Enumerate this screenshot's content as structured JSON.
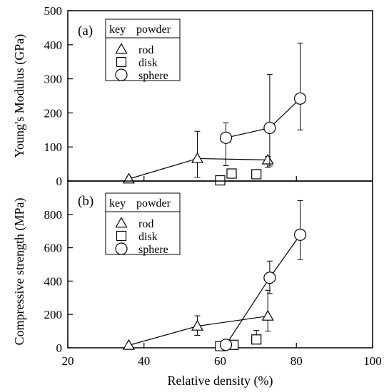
{
  "chart_data": [
    {
      "type": "scatter",
      "panel_label": "(a)",
      "ylabel": "Young's Modulus (GPa)",
      "xlabel": "",
      "xlim": [
        20,
        100
      ],
      "ylim": [
        0,
        500
      ],
      "x_ticks": [
        "20",
        "40",
        "60",
        "80",
        "100"
      ],
      "y_ticks": [
        "0",
        "100",
        "200",
        "300",
        "400",
        "500"
      ],
      "legend": {
        "title_left": "key",
        "title_right": "powder",
        "position": "top-left",
        "entries": [
          "rod",
          "disk",
          "sphere"
        ]
      },
      "series": [
        {
          "name": "rod",
          "marker": "triangle",
          "connected": true,
          "points": [
            {
              "x": 36,
              "y": 6,
              "err_up": 6,
              "err_down": 0
            },
            {
              "x": 54,
              "y": 66,
              "err_up": 80,
              "err_down": 55
            },
            {
              "x": 72.5,
              "y": 62,
              "err_up": 10,
              "err_down": 22
            }
          ]
        },
        {
          "name": "disk",
          "marker": "square",
          "connected": false,
          "points": [
            {
              "x": 60,
              "y": 2,
              "err_up": 0,
              "err_down": 0
            },
            {
              "x": 63,
              "y": 22,
              "err_up": 0,
              "err_down": 0
            },
            {
              "x": 69.5,
              "y": 20,
              "err_up": 0,
              "err_down": 0
            }
          ]
        },
        {
          "name": "sphere",
          "marker": "circle",
          "connected": true,
          "points": [
            {
              "x": 61.5,
              "y": 127,
              "err_up": 44,
              "err_down": 82
            },
            {
              "x": 73,
              "y": 156,
              "err_up": 157,
              "err_down": 112
            },
            {
              "x": 81,
              "y": 242,
              "err_up": 163,
              "err_down": 92
            }
          ]
        }
      ]
    },
    {
      "type": "scatter",
      "panel_label": "(b)",
      "ylabel": "Compressive strength (MPa)",
      "xlabel": "Relative density (%)",
      "xlim": [
        20,
        100
      ],
      "ylim": [
        0,
        1000
      ],
      "x_ticks": [
        "20",
        "40",
        "60",
        "80",
        "100"
      ],
      "y_ticks": [
        "0",
        "200",
        "400",
        "600",
        "800"
      ],
      "legend": {
        "title_left": "key",
        "title_right": "powder",
        "position": "top-left",
        "entries": [
          "rod",
          "disk",
          "sphere"
        ]
      },
      "series": [
        {
          "name": "rod",
          "marker": "triangle",
          "connected": true,
          "points": [
            {
              "x": 36,
              "y": 15,
              "err_up": 0,
              "err_down": 0
            },
            {
              "x": 54,
              "y": 130,
              "err_up": 62,
              "err_down": 55
            },
            {
              "x": 72.5,
              "y": 190,
              "err_up": 155,
              "err_down": 90
            }
          ]
        },
        {
          "name": "disk",
          "marker": "square",
          "connected": false,
          "points": [
            {
              "x": 60,
              "y": 10,
              "err_up": 0,
              "err_down": 0
            },
            {
              "x": 63.5,
              "y": 18,
              "err_up": 0,
              "err_down": 0
            },
            {
              "x": 69.5,
              "y": 50,
              "err_up": 55,
              "err_down": 0
            }
          ]
        },
        {
          "name": "sphere",
          "marker": "circle",
          "connected": true,
          "points": [
            {
              "x": 61.5,
              "y": 18,
              "err_up": 0,
              "err_down": 0
            },
            {
              "x": 73,
              "y": 420,
              "err_up": 100,
              "err_down": 95
            },
            {
              "x": 81,
              "y": 678,
              "err_up": 205,
              "err_down": 148
            }
          ]
        }
      ]
    }
  ]
}
